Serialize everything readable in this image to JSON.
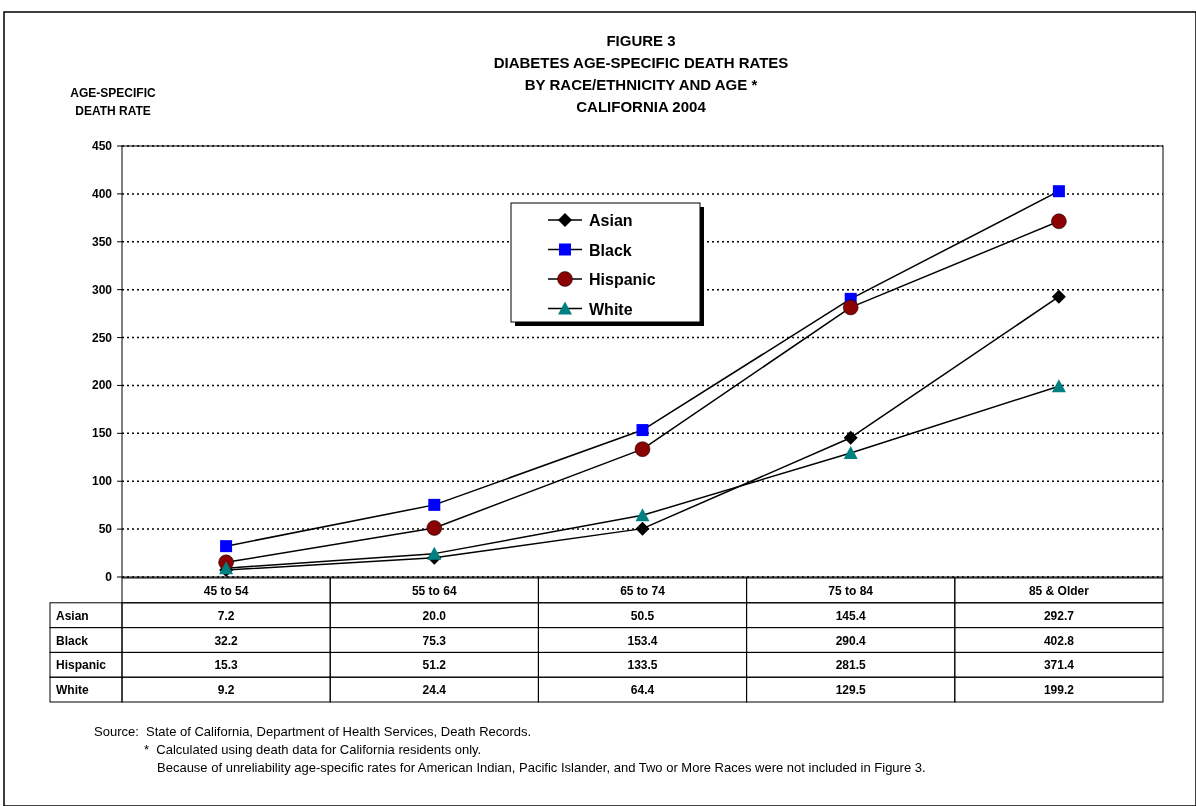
{
  "chart_data": {
    "type": "line",
    "title": "FIGURE 3\nDIABETES AGE-SPECIFIC DEATH RATES\nBY RACE/ETHNICITY AND AGE *\nCALIFORNIA 2004",
    "ylabel": "AGE-SPECIFIC\nDEATH RATE",
    "categories": [
      "45 to 54",
      "55 to 64",
      "65 to 74",
      "75 to 84",
      "85 & Older"
    ],
    "series": [
      {
        "name": "Asian",
        "color": "#000000",
        "marker": "diamond",
        "values": [
          7.2,
          20.0,
          50.5,
          145.4,
          292.7
        ],
        "value_labels": [
          "7.2",
          "20.0",
          "50.5",
          "145.4",
          "292.7"
        ]
      },
      {
        "name": "Black",
        "color": "#0000ff",
        "marker": "square",
        "values": [
          32.2,
          75.3,
          153.4,
          290.4,
          402.8
        ],
        "value_labels": [
          "32.2",
          "75.3",
          "153.4",
          "290.4",
          "402.8"
        ]
      },
      {
        "name": "Hispanic",
        "color": "#8b0000",
        "marker": "circle",
        "values": [
          15.3,
          51.2,
          133.5,
          281.5,
          371.4
        ],
        "value_labels": [
          "15.3",
          "51.2",
          "133.5",
          "281.5",
          "371.4"
        ]
      },
      {
        "name": "White",
        "color": "#008080",
        "marker": "triangle",
        "values": [
          9.2,
          24.4,
          64.4,
          129.5,
          199.2
        ],
        "value_labels": [
          "9.2",
          "24.4",
          "64.4",
          "129.5",
          "199.2"
        ]
      }
    ],
    "ylim": [
      0,
      450
    ],
    "yticks": [
      0,
      50,
      100,
      150,
      200,
      250,
      300,
      350,
      400,
      450
    ],
    "grid": "y",
    "legend": "top",
    "line_style": "solid",
    "annotations": [
      "Source:  State of California, Department of Health Services, Death Records.",
      "*  Calculated using death data for California residents only.",
      "Because of unreliability age-specific rates for American Indian, Pacific Islander, and Two or More Races were not included in Figure 3."
    ]
  }
}
